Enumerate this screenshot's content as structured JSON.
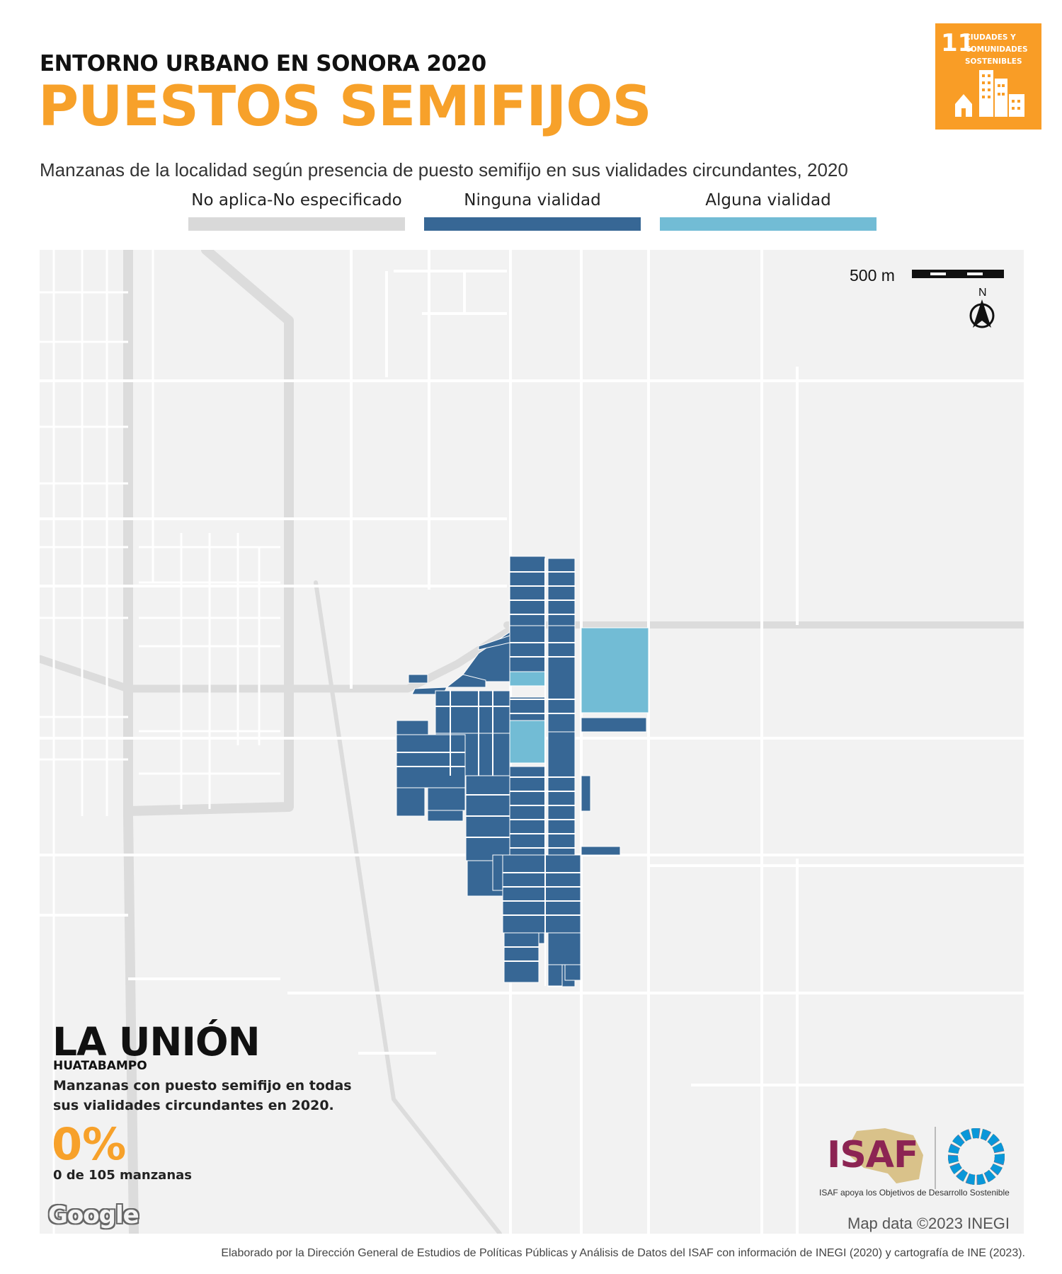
{
  "header": {
    "kicker": "ENTORNO URBANO EN SONORA 2020",
    "title": "PUESTOS SEMIFIJOS",
    "subtitle": "Manzanas de la localidad según presencia de puesto semifijo en sus vialidades circundantes, 2020"
  },
  "legend": [
    {
      "label": "No aplica-No especificado",
      "color": "#d9d9d9"
    },
    {
      "label": "Ninguna vialidad",
      "color": "#376795"
    },
    {
      "label": "Alguna vialidad",
      "color": "#72bcd5"
    }
  ],
  "sdg_badge": {
    "number": "11",
    "text_line1": "CIUDADES Y",
    "text_line2": "COMUNIDADES",
    "text_line3": "SOSTENIBLES",
    "color": "#f99d26"
  },
  "map": {
    "scale_label": "500 m",
    "north_label": "N",
    "credit": "Map data ©2023 INEGI",
    "google_logo": "Google"
  },
  "locality": {
    "name": "LA UNIÓN",
    "municipality": "HUATABAMPO",
    "stat_description": "Manzanas con puesto semifijo en todas sus vialidades circundantes en 2020.",
    "stat_percent": "0%",
    "stat_count": "0 de 105 manzanas"
  },
  "logos": {
    "isaf_wordmark": "ISAF",
    "isaf_slogan": "ISAF apoya los Objetivos de Desarrollo Sostenible"
  },
  "footer": "Elaborado por la Dirección General de Estudios de Políticas Públicas y Análisis de Datos del ISAF con información de INEGI (2020) y cartografía de INE (2023).",
  "colors": {
    "accent": "#f7a12a",
    "ninguna": "#376795",
    "alguna": "#72bcd5",
    "no_aplica": "#d9d9d9"
  }
}
